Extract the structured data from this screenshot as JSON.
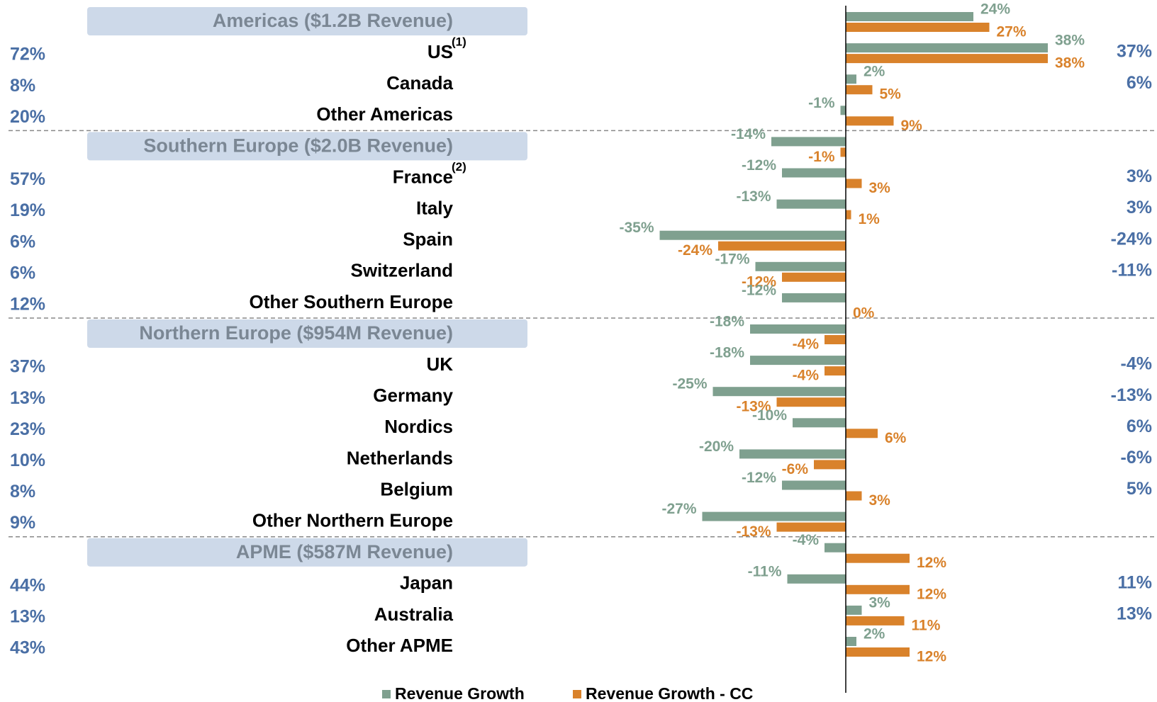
{
  "chart_data": {
    "type": "bar",
    "orientation": "horizontal",
    "categories": [
      "Americas ($1.2B Revenue)",
      "US",
      "Canada",
      "Other Americas",
      "Southern Europe ($2.0B Revenue)",
      "France",
      "Italy",
      "Spain",
      "Switzerland",
      "Other Southern Europe",
      "Northern Europe ($954M Revenue)",
      "UK",
      "Germany",
      "Nordics",
      "Netherlands",
      "Belgium",
      "Other Northern Europe",
      "APME ($587M Revenue)",
      "Japan",
      "Australia",
      "Other APME"
    ],
    "footnotes": [
      null,
      "(1)",
      null,
      null,
      null,
      "(2)",
      null,
      null,
      null,
      null,
      null,
      null,
      null,
      null,
      null,
      null,
      null,
      null,
      null,
      null,
      null
    ],
    "left_labels": [
      null,
      "72%",
      "8%",
      "20%",
      null,
      "57%",
      "19%",
      "6%",
      "6%",
      "12%",
      null,
      "37%",
      "13%",
      "23%",
      "10%",
      "8%",
      "9%",
      null,
      "44%",
      "13%",
      "43%"
    ],
    "right_labels": [
      null,
      "37%",
      "6%",
      null,
      null,
      "3%",
      "3%",
      "-24%",
      "-11%",
      null,
      null,
      "-4%",
      "-13%",
      "6%",
      "-6%",
      "5%",
      null,
      null,
      "11%",
      "13%",
      null
    ],
    "series": [
      {
        "name": "Revenue Growth",
        "color": "#7fa08f",
        "values": [
          24,
          38,
          2,
          -1,
          -14,
          -12,
          -13,
          -35,
          -17,
          -12,
          -18,
          -18,
          -25,
          -10,
          -20,
          -12,
          -27,
          -4,
          -11,
          3,
          2
        ],
        "value_labels": [
          "24%",
          "38%",
          "2%",
          "-1%",
          "-14%",
          "-12%",
          "-13%",
          "-35%",
          "-17%",
          "-12%",
          "-18%",
          "-18%",
          "-25%",
          "-10%",
          "-20%",
          "-12%",
          "-27%",
          "-4%",
          "-11%",
          "3%",
          "2%"
        ]
      },
      {
        "name": "Revenue Growth - CC",
        "color": "#d9822b",
        "values": [
          27,
          38,
          5,
          9,
          -1,
          3,
          1,
          -24,
          -12,
          0,
          -4,
          -4,
          -13,
          6,
          -6,
          3,
          -13,
          12,
          12,
          11,
          12
        ],
        "value_labels": [
          "27%",
          "38%",
          "5%",
          "9%",
          "-1%",
          "3%",
          "1%",
          "-24%",
          "-12%",
          "0%",
          "-4%",
          "-4%",
          "-13%",
          "6%",
          "-6%",
          "3%",
          "-13%",
          "12%",
          "12%",
          "11%",
          "12%"
        ]
      }
    ],
    "xlim": [
      -40,
      40
    ]
  }
}
